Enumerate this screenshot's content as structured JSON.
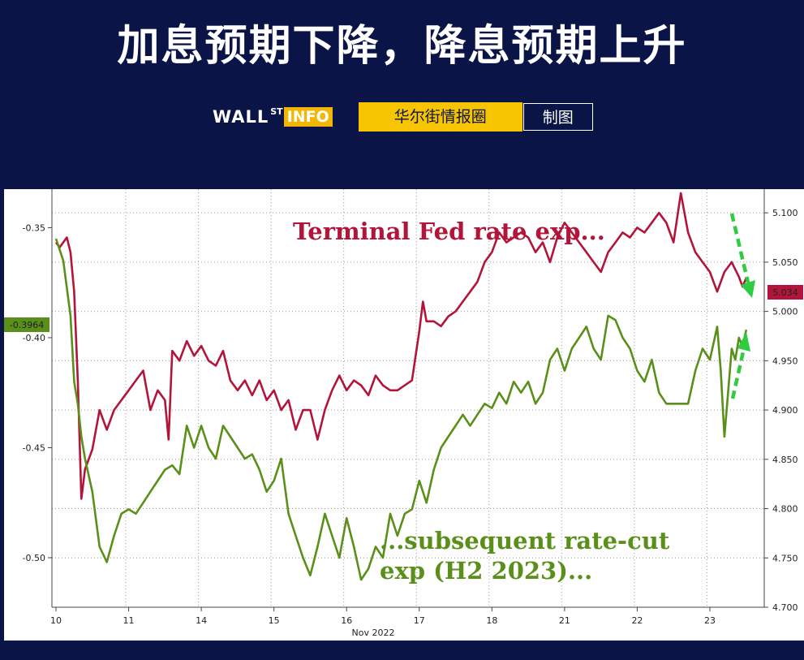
{
  "header": {
    "title": "加息预期下降，降息预期上升",
    "brand_wall": "WALL",
    "brand_st": "ST",
    "brand_info": "INFO",
    "tag_source": "华尔街情报圈",
    "tag_made": "制图"
  },
  "chart_data": {
    "type": "line",
    "title": "",
    "xlabel": "Nov 2022",
    "x_ticks": [
      "10",
      "11",
      "14",
      "15",
      "16",
      "17",
      "18",
      "21",
      "22",
      "23"
    ],
    "left_axis": {
      "ticks": [
        "-0.35",
        "-0.40",
        "-0.45",
        "-0.50"
      ],
      "ylim": [
        -0.5225,
        -0.3325
      ]
    },
    "right_axis": {
      "ticks": [
        "5.100",
        "5.050",
        "5.000",
        "4.950",
        "4.900",
        "4.850",
        "4.800",
        "4.750",
        "4.700"
      ],
      "ylim": [
        4.7,
        5.124
      ]
    },
    "grid": true,
    "annotations": {
      "terminal": "Terminal Fed rate exp...",
      "cut_line1": "...subsequent rate-cut",
      "cut_line2": "exp (H2 2023)..."
    },
    "last_values": {
      "green": "-0.3964",
      "red": "5.034"
    },
    "series": [
      {
        "axis": "right",
        "color": "#b3153a",
        "x": [
          0.0,
          0.05,
          0.15,
          0.2,
          0.25,
          0.3,
          0.35,
          0.4,
          0.5,
          0.6,
          0.7,
          0.8,
          1.0,
          1.1,
          1.2,
          1.3,
          1.4,
          1.5,
          1.55,
          1.6,
          1.7,
          1.8,
          1.9,
          2.0,
          2.1,
          2.2,
          2.3,
          2.4,
          2.5,
          2.6,
          2.7,
          2.8,
          2.9,
          3.0,
          3.1,
          3.2,
          3.3,
          3.4,
          3.5,
          3.6,
          3.7,
          3.8,
          3.9,
          4.0,
          4.1,
          4.2,
          4.3,
          4.4,
          4.5,
          4.6,
          4.7,
          4.8,
          4.9,
          5.0,
          5.05,
          5.1,
          5.2,
          5.3,
          5.4,
          5.5,
          5.6,
          5.7,
          5.8,
          5.9,
          6.0,
          6.1,
          6.2,
          6.3,
          6.4,
          6.5,
          6.6,
          6.7,
          6.8,
          6.9,
          7.0,
          7.1,
          7.2,
          7.3,
          7.4,
          7.5,
          7.6,
          7.7,
          7.8,
          7.9,
          8.0,
          8.1,
          8.2,
          8.3,
          8.4,
          8.5,
          8.6,
          8.7,
          8.8,
          8.9,
          9.0,
          9.05,
          9.1,
          9.2,
          9.3,
          9.4,
          9.45,
          9.5
        ],
        "values": [
          5.07,
          5.065,
          5.075,
          5.06,
          5.02,
          4.93,
          4.81,
          4.84,
          4.86,
          4.9,
          4.88,
          4.9,
          4.92,
          4.93,
          4.94,
          4.9,
          4.92,
          4.91,
          4.87,
          4.96,
          4.95,
          4.97,
          4.955,
          4.965,
          4.95,
          4.945,
          4.96,
          4.93,
          4.92,
          4.93,
          4.915,
          4.93,
          4.91,
          4.92,
          4.9,
          4.91,
          4.88,
          4.9,
          4.9,
          4.87,
          4.9,
          4.92,
          4.935,
          4.92,
          4.93,
          4.925,
          4.915,
          4.935,
          4.925,
          4.92,
          4.92,
          4.925,
          4.93,
          4.98,
          5.01,
          4.99,
          4.99,
          4.985,
          4.995,
          5.0,
          5.01,
          5.02,
          5.03,
          5.05,
          5.06,
          5.08,
          5.07,
          5.075,
          5.08,
          5.075,
          5.06,
          5.07,
          5.05,
          5.075,
          5.09,
          5.08,
          5.07,
          5.06,
          5.05,
          5.04,
          5.06,
          5.07,
          5.08,
          5.075,
          5.085,
          5.08,
          5.09,
          5.1,
          5.09,
          5.07,
          5.12,
          5.08,
          5.06,
          5.05,
          5.04,
          5.03,
          5.02,
          5.04,
          5.05,
          5.035,
          5.025,
          5.034
        ]
      },
      {
        "axis": "left",
        "color": "#5a8f1a",
        "x": [
          0.0,
          0.05,
          0.1,
          0.2,
          0.25,
          0.3,
          0.35,
          0.4,
          0.5,
          0.6,
          0.7,
          0.8,
          0.9,
          1.0,
          1.1,
          1.2,
          1.3,
          1.4,
          1.5,
          1.6,
          1.7,
          1.8,
          1.9,
          2.0,
          2.1,
          2.2,
          2.3,
          2.4,
          2.5,
          2.6,
          2.7,
          2.8,
          2.9,
          3.0,
          3.1,
          3.2,
          3.3,
          3.4,
          3.5,
          3.6,
          3.7,
          3.8,
          3.9,
          4.0,
          4.1,
          4.2,
          4.3,
          4.4,
          4.5,
          4.6,
          4.7,
          4.8,
          4.9,
          5.0,
          5.1,
          5.2,
          5.3,
          5.4,
          5.5,
          5.6,
          5.7,
          5.8,
          5.9,
          6.0,
          6.1,
          6.2,
          6.3,
          6.4,
          6.5,
          6.6,
          6.7,
          6.8,
          6.9,
          7.0,
          7.1,
          7.2,
          7.3,
          7.4,
          7.5,
          7.6,
          7.7,
          7.8,
          7.9,
          8.0,
          8.1,
          8.2,
          8.3,
          8.4,
          8.5,
          8.6,
          8.7,
          8.8,
          8.9,
          9.0,
          9.1,
          9.15,
          9.2,
          9.3,
          9.35,
          9.4,
          9.45,
          9.5
        ],
        "values": [
          -0.355,
          -0.36,
          -0.365,
          -0.39,
          -0.42,
          -0.43,
          -0.445,
          -0.455,
          -0.47,
          -0.495,
          -0.502,
          -0.49,
          -0.48,
          -0.478,
          -0.48,
          -0.475,
          -0.47,
          -0.465,
          -0.46,
          -0.458,
          -0.462,
          -0.44,
          -0.45,
          -0.44,
          -0.45,
          -0.455,
          -0.44,
          -0.445,
          -0.45,
          -0.455,
          -0.453,
          -0.46,
          -0.47,
          -0.465,
          -0.455,
          -0.48,
          -0.49,
          -0.5,
          -0.508,
          -0.495,
          -0.48,
          -0.49,
          -0.5,
          -0.482,
          -0.495,
          -0.51,
          -0.505,
          -0.495,
          -0.5,
          -0.48,
          -0.49,
          -0.48,
          -0.478,
          -0.465,
          -0.475,
          -0.46,
          -0.45,
          -0.445,
          -0.44,
          -0.435,
          -0.44,
          -0.435,
          -0.43,
          -0.432,
          -0.425,
          -0.43,
          -0.42,
          -0.425,
          -0.42,
          -0.43,
          -0.425,
          -0.41,
          -0.405,
          -0.415,
          -0.405,
          -0.4,
          -0.395,
          -0.405,
          -0.41,
          -0.39,
          -0.392,
          -0.4,
          -0.405,
          -0.415,
          -0.42,
          -0.41,
          -0.425,
          -0.43,
          -0.43,
          -0.43,
          -0.43,
          -0.415,
          -0.405,
          -0.41,
          -0.395,
          -0.415,
          -0.445,
          -0.405,
          -0.41,
          -0.4,
          -0.404,
          -0.3964
        ]
      }
    ]
  }
}
